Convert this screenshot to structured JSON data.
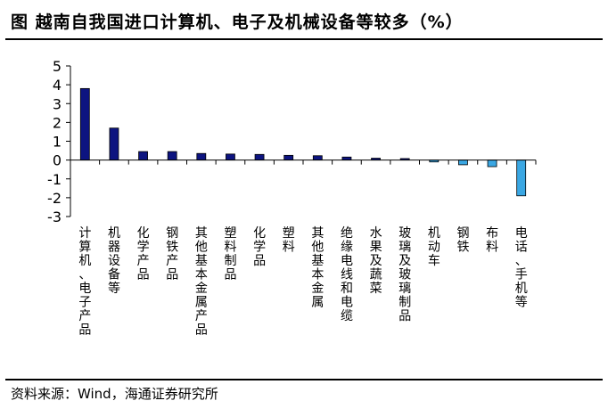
{
  "title": "图  越南自我国进口计算机、电子及机械设备等较多（%）",
  "source": "资料来源：Wind，海通证券研究所",
  "colors": {
    "positive": "#0d1480",
    "negative": "#3aa7e3",
    "border": "#000000"
  },
  "chart_data": {
    "type": "bar",
    "title": "越南自我国进口计算机、电子及机械设备等较多",
    "xlabel": "",
    "ylabel": "",
    "unit": "%",
    "ylim": [
      -3,
      5
    ],
    "yticks": [
      -3,
      -2,
      -1,
      0,
      1,
      2,
      3,
      4,
      5
    ],
    "grid": false,
    "legend": "none",
    "categories": [
      "计算机、电子产品",
      "机器设备等",
      "化学产品",
      "钢铁产品",
      "其他基本金属产品",
      "塑料制品",
      "化学品",
      "塑料",
      "其他基本金属",
      "绝缘电线和电缆",
      "水果及蔬菜",
      "玻璃及玻璃制品",
      "机动车",
      "钢铁",
      "布料",
      "电话、手机等"
    ],
    "values": [
      3.8,
      1.7,
      0.45,
      0.45,
      0.35,
      0.32,
      0.3,
      0.25,
      0.23,
      0.16,
      0.1,
      0.08,
      -0.1,
      -0.25,
      -0.35,
      -1.9
    ]
  }
}
